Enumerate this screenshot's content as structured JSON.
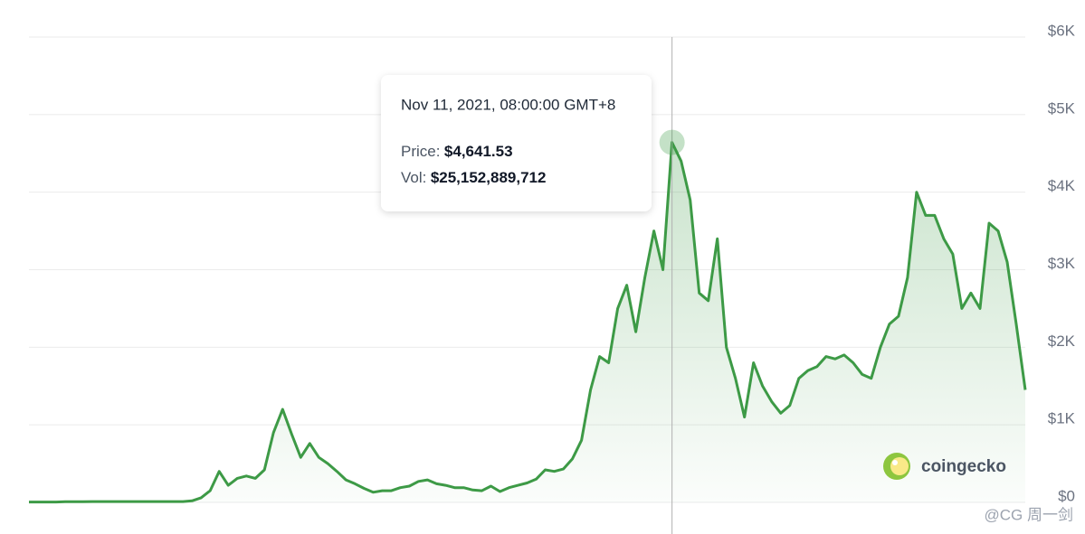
{
  "chart_data": {
    "type": "line",
    "values": [
      5,
      5,
      5,
      5,
      8,
      8,
      8,
      10,
      10,
      10,
      10,
      10,
      10,
      10,
      10,
      10,
      10,
      10,
      20,
      60,
      150,
      400,
      220,
      310,
      340,
      310,
      420,
      900,
      1200,
      880,
      580,
      760,
      580,
      500,
      400,
      290,
      240,
      180,
      130,
      150,
      150,
      190,
      210,
      270,
      290,
      240,
      220,
      190,
      190,
      160,
      150,
      210,
      140,
      190,
      220,
      250,
      300,
      420,
      400,
      430,
      560,
      800,
      1450,
      1880,
      1800,
      2500,
      2800,
      2200,
      2900,
      3500,
      3000,
      4641.53,
      4400,
      3900,
      2700,
      2600,
      3400,
      2000,
      1600,
      1100,
      1800,
      1500,
      1300,
      1150,
      1250,
      1600,
      1700,
      1750,
      1880,
      1850,
      1900,
      1800,
      1650,
      1600,
      2000,
      2300,
      2400,
      2900,
      4000,
      3700,
      3700,
      3400,
      3200,
      2500,
      2700,
      2500,
      3600,
      3500,
      3100,
      2300,
      1450
    ],
    "color": "#3d9a46",
    "ylim": [
      0,
      6000
    ],
    "yticks": [
      {
        "value": 0,
        "label": "$0"
      },
      {
        "value": 1000,
        "label": "$1K"
      },
      {
        "value": 2000,
        "label": "$2K"
      },
      {
        "value": 3000,
        "label": "$3K"
      },
      {
        "value": 4000,
        "label": "$4K"
      },
      {
        "value": 5000,
        "label": "$5K"
      },
      {
        "value": 6000,
        "label": "$6K"
      }
    ],
    "grid": true,
    "tooltip": {
      "date": "Nov 11, 2021, 08:00:00 GMT+8",
      "price_label": "Price:",
      "price": {
        "value": 4641.53,
        "label": "$4,641.53"
      },
      "vol_label": "Vol:",
      "vol": "$25,152,889,712"
    },
    "watermark": "coingecko",
    "credit": "@CG 周一剑"
  }
}
